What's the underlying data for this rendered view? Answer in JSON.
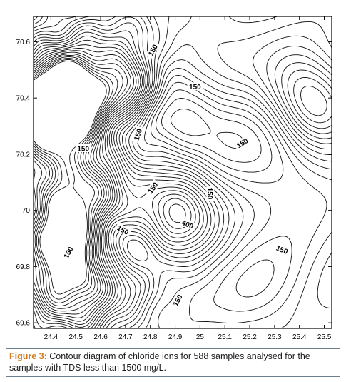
{
  "chart_data": {
    "type": "contour",
    "title": "",
    "xlabel": "",
    "ylabel": "",
    "xlim": [
      24.33,
      25.53
    ],
    "ylim": [
      69.58,
      70.69
    ],
    "x_ticks": [
      "24.4",
      "24.5",
      "24.6",
      "24.7",
      "24.8",
      "24.9",
      "25",
      "25.1",
      "25.2",
      "25.3",
      "25.4",
      "25.5"
    ],
    "x_tick_values": [
      24.4,
      24.5,
      24.6,
      24.7,
      24.8,
      24.9,
      25.0,
      25.1,
      25.2,
      25.3,
      25.4,
      25.5
    ],
    "y_ticks": [
      "69.6",
      "69.8",
      "70",
      "70.2",
      "70.4",
      "70.6"
    ],
    "y_tick_values": [
      69.6,
      69.8,
      70.0,
      70.2,
      70.4,
      70.6
    ],
    "grid": false,
    "contour_labels": [
      {
        "text": "150",
        "x": 24.81,
        "y": 70.57,
        "angle": -62
      },
      {
        "text": "150",
        "x": 24.98,
        "y": 70.44,
        "angle": 0
      },
      {
        "text": "150",
        "x": 25.17,
        "y": 70.24,
        "angle": -32
      },
      {
        "text": "150",
        "x": 24.75,
        "y": 70.27,
        "angle": -72
      },
      {
        "text": "150",
        "x": 24.53,
        "y": 70.22,
        "angle": 0
      },
      {
        "text": "150",
        "x": 24.81,
        "y": 70.08,
        "angle": -55
      },
      {
        "text": "150",
        "x": 25.04,
        "y": 70.06,
        "angle": 90
      },
      {
        "text": "150",
        "x": 24.69,
        "y": 69.93,
        "angle": 28
      },
      {
        "text": "400",
        "x": 24.95,
        "y": 69.95,
        "angle": 22
      },
      {
        "text": "150",
        "x": 25.33,
        "y": 69.86,
        "angle": 22
      },
      {
        "text": "150",
        "x": 24.91,
        "y": 69.68,
        "angle": -62
      },
      {
        "text": "150",
        "x": 24.47,
        "y": 69.85,
        "angle": -62
      }
    ]
  },
  "caption": {
    "label": "Figure 3:",
    "text": " Contour diagram of chloride ions for 588 samples analysed for the samples with TDS less than 1500 mg/L."
  }
}
